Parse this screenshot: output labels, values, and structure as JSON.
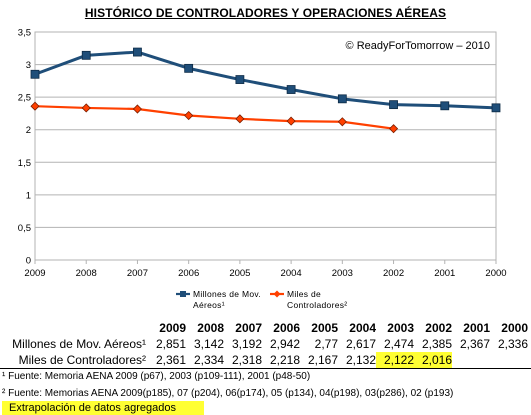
{
  "chart_data": {
    "type": "line",
    "title": "HISTÓRICO DE CONTROLADORES Y OPERACIONES AÉREAS",
    "watermark": "© ReadyForTomorrow – 2010",
    "categories": [
      "2009",
      "2008",
      "2007",
      "2006",
      "2005",
      "2004",
      "2003",
      "2002",
      "2001",
      "2000"
    ],
    "y_ticks": [
      "0",
      "0,5",
      "1",
      "1,5",
      "2",
      "2,5",
      "3",
      "3,5"
    ],
    "ylim": [
      0,
      3.5
    ],
    "grid": "horizontal",
    "legend_position": "bottom",
    "series": [
      {
        "name": "Millones de Mov. Aéreos¹",
        "legend_lines": [
          "Millones de Mov.",
          "Aéreos¹"
        ],
        "color": "#1f4e79",
        "marker": "square",
        "values": [
          2.851,
          3.142,
          3.192,
          2.942,
          2.77,
          2.617,
          2.474,
          2.385,
          2.367,
          2.336
        ]
      },
      {
        "name": "Miles de Controladores²",
        "legend_lines": [
          "Miles de",
          "Controladores²"
        ],
        "color": "#ff4000",
        "marker": "diamond",
        "values": [
          2.361,
          2.334,
          2.318,
          2.218,
          2.167,
          2.132,
          2.122,
          2.016,
          null,
          null
        ]
      }
    ]
  },
  "table": {
    "headers": [
      "2009",
      "2008",
      "2007",
      "2006",
      "2005",
      "2004",
      "2003",
      "2002",
      "2001",
      "2000"
    ],
    "rows": [
      {
        "label": "Millones de Mov. Aéreos¹",
        "values": [
          "2,851",
          "3,142",
          "3,192",
          "2,942",
          "2,77",
          "2,617",
          "2,474",
          "2,385",
          "2,367",
          "2,336"
        ]
      },
      {
        "label": "Miles de Controladores²",
        "values": [
          "2,361",
          "2,334",
          "2,318",
          "2,218",
          "2,167",
          "2,132",
          "2,122",
          "2,016",
          "",
          ""
        ]
      }
    ]
  },
  "highlight_color": "#ffff33",
  "notes": {
    "note1": "¹ Fuente: Memoria AENA 2009 (p67), 2003 (p109-111), 2001 (p48-50)",
    "note2": "² Fuente: Memorias AENA 2009(p185), 07 (p204), 06(p174), 05 (p134), 04(p198), 03(p286), 02 (p193)",
    "highlight_legend": "Extrapolación de datos agregados"
  }
}
